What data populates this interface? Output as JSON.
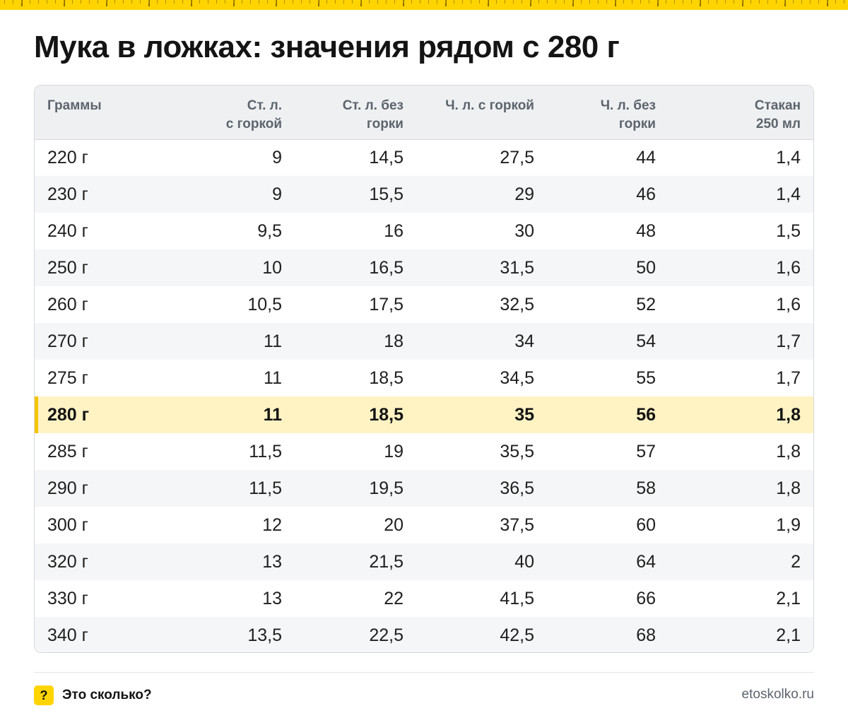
{
  "title": "Мука в ложках: значения рядом с 280 г",
  "table": {
    "headers": [
      [
        "Граммы"
      ],
      [
        "Ст. л.",
        "с горкой"
      ],
      [
        "Ст. л. без",
        "горки"
      ],
      [
        "Ч. л. с горкой"
      ],
      [
        "Ч. л. без",
        "горки"
      ],
      [
        "Стакан",
        "250 мл"
      ]
    ],
    "highlight_row": "280 г",
    "rows": [
      [
        "220 г",
        "9",
        "14,5",
        "27,5",
        "44",
        "1,4"
      ],
      [
        "230 г",
        "9",
        "15,5",
        "29",
        "46",
        "1,4"
      ],
      [
        "240 г",
        "9,5",
        "16",
        "30",
        "48",
        "1,5"
      ],
      [
        "250 г",
        "10",
        "16,5",
        "31,5",
        "50",
        "1,6"
      ],
      [
        "260 г",
        "10,5",
        "17,5",
        "32,5",
        "52",
        "1,6"
      ],
      [
        "270 г",
        "11",
        "18",
        "34",
        "54",
        "1,7"
      ],
      [
        "275 г",
        "11",
        "18,5",
        "34,5",
        "55",
        "1,7"
      ],
      [
        "280 г",
        "11",
        "18,5",
        "35",
        "56",
        "1,8"
      ],
      [
        "285 г",
        "11,5",
        "19",
        "35,5",
        "57",
        "1,8"
      ],
      [
        "290 г",
        "11,5",
        "19,5",
        "36,5",
        "58",
        "1,8"
      ],
      [
        "300 г",
        "12",
        "20",
        "37,5",
        "60",
        "1,9"
      ],
      [
        "320 г",
        "13",
        "21,5",
        "40",
        "64",
        "2"
      ],
      [
        "330 г",
        "13",
        "22",
        "41,5",
        "66",
        "2,1"
      ],
      [
        "340 г",
        "13,5",
        "22,5",
        "42,5",
        "68",
        "2,1"
      ]
    ]
  },
  "footer": {
    "badge": "?",
    "brand": "Это сколько?",
    "site": "etoskolko.ru"
  },
  "colors": {
    "accent": "#FFD400",
    "highlight_bg": "#FFF3C4",
    "header_bg": "#EEF0F2"
  }
}
